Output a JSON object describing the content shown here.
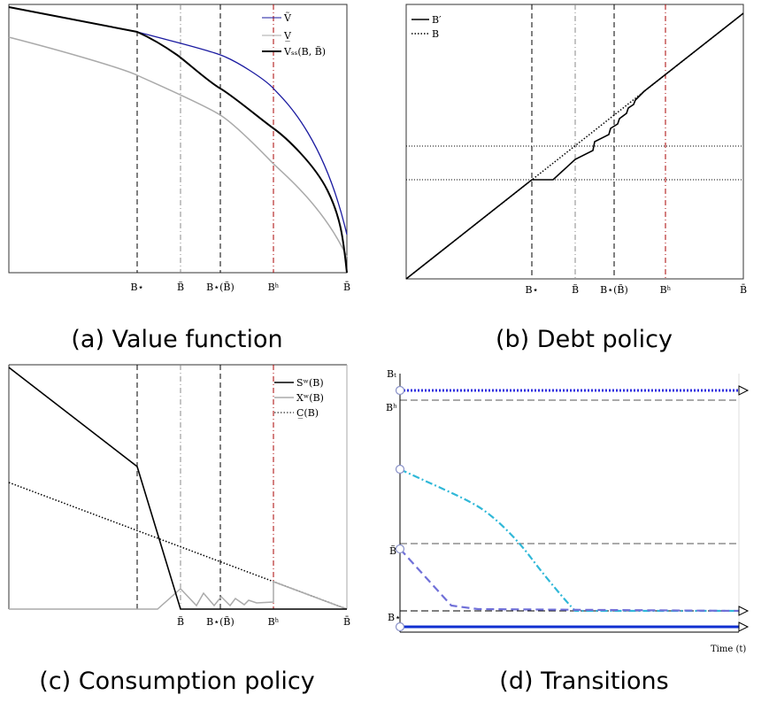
{
  "panels": [
    {
      "caption": "(a) Value function",
      "x_tick_labels": [
        "B⋆",
        "B̃",
        "B⋆(B̃)",
        "Bʰ",
        "B̄"
      ],
      "legend": [
        "Ṽ",
        "V̲",
        "Vₛₛ(B, B̃)"
      ]
    },
    {
      "caption": "(b) Debt policy",
      "x_tick_labels": [
        "B⋆",
        "B̃",
        "B⋆(B̃)",
        "Bʰ",
        "B̄"
      ],
      "legend": [
        "B′",
        "B"
      ]
    },
    {
      "caption": "(c) Consumption policy",
      "x_tick_labels": [
        "B̃",
        "B⋆(B̃)",
        "Bʰ",
        "B̄"
      ],
      "legend": [
        "Sʷ(B)",
        "Xʷ(B)",
        "C̲(B)"
      ]
    },
    {
      "caption": "(d) Transitions",
      "y_labels": [
        "Bₜ",
        "Bʰ",
        "B̃",
        "B⋆"
      ],
      "x_label": "Time (t)"
    }
  ]
}
